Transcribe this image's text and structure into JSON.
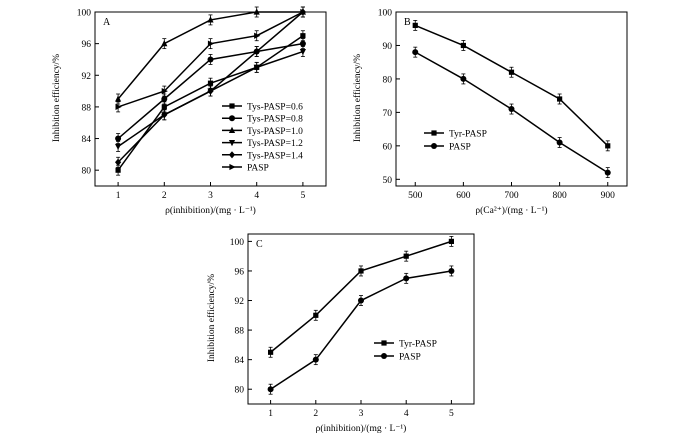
{
  "chart_data": [
    {
      "panel": "A",
      "type": "line",
      "x": [
        1,
        2,
        3,
        4,
        5
      ],
      "xlabel": "ρ(inhibition)/(mg · L⁻¹)",
      "ylabel": "Inhibition efficiency/%",
      "xlim": [
        0.5,
        5.5
      ],
      "ylim": [
        78,
        100
      ],
      "xticks": [
        "1",
        "2",
        "3",
        "4",
        "5"
      ],
      "yticks": [
        "80",
        "84",
        "88",
        "92",
        "96",
        "100"
      ],
      "legend_position": "bottom-right",
      "series": [
        {
          "name": "Tys-PASP=0.6",
          "marker": "square",
          "values": [
            80,
            88,
            91,
            93,
            97
          ]
        },
        {
          "name": "Tys-PASP=0.8",
          "marker": "circle",
          "values": [
            84,
            89,
            94,
            95,
            96
          ]
        },
        {
          "name": "Tys-PASP=1.0",
          "marker": "triangle-up",
          "values": [
            89,
            96,
            99,
            100,
            100
          ]
        },
        {
          "name": "Tys-PASP=1.2",
          "marker": "triangle-down",
          "values": [
            83,
            87,
            90,
            93,
            95
          ]
        },
        {
          "name": "Tys-PASP=1.4",
          "marker": "diamond",
          "values": [
            81,
            87,
            90,
            95,
            100
          ]
        },
        {
          "name": "PASP",
          "marker": "triangle-right",
          "values": [
            88,
            90,
            96,
            97,
            100
          ]
        }
      ]
    },
    {
      "panel": "B",
      "type": "line",
      "x": [
        500,
        600,
        700,
        800,
        900
      ],
      "xlabel": "ρ(Ca²⁺)/(mg · L⁻¹)",
      "ylabel": "Inhibition efficiency/%",
      "xlim": [
        460,
        940
      ],
      "ylim": [
        48,
        100
      ],
      "xticks": [
        "500",
        "600",
        "700",
        "800",
        "900"
      ],
      "yticks": [
        "50",
        "60",
        "70",
        "80",
        "90",
        "100"
      ],
      "legend_position": "middle-left",
      "series": [
        {
          "name": "Tyr-PASP",
          "marker": "square",
          "values": [
            96,
            90,
            82,
            74,
            60
          ]
        },
        {
          "name": "PASP",
          "marker": "circle",
          "values": [
            88,
            80,
            71,
            61,
            52
          ]
        }
      ]
    },
    {
      "panel": "C",
      "type": "line",
      "x": [
        1,
        2,
        3,
        4,
        5
      ],
      "xlabel": "ρ(inhibition)/(mg · L⁻¹)",
      "ylabel": "Inhibition efficiency/%",
      "xlim": [
        0.5,
        5.5
      ],
      "ylim": [
        78,
        101
      ],
      "xticks": [
        "1",
        "2",
        "3",
        "4",
        "5"
      ],
      "yticks": [
        "80",
        "84",
        "88",
        "92",
        "96",
        "100"
      ],
      "legend_position": "bottom-left",
      "series": [
        {
          "name": "Tyr-PASP",
          "marker": "square",
          "values": [
            85,
            90,
            96,
            98,
            100
          ]
        },
        {
          "name": "PASP",
          "marker": "circle",
          "values": [
            80,
            84,
            92,
            95,
            96
          ]
        }
      ]
    }
  ]
}
